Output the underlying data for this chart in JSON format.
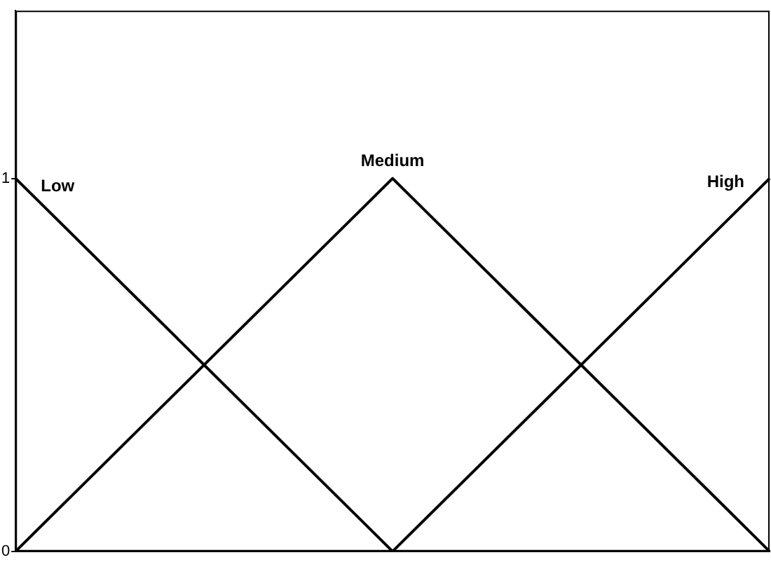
{
  "chart_data": {
    "type": "line",
    "categories": [
      null,
      null,
      null
    ],
    "series": [
      {
        "name": "Low",
        "color": "#000000",
        "values": [
          1,
          0,
          null
        ]
      },
      {
        "name": "Medium",
        "color": "#000000",
        "values": [
          0,
          1,
          0
        ]
      },
      {
        "name": "High",
        "color": "#000000",
        "values": [
          null,
          0,
          1
        ]
      }
    ],
    "ylim": [
      0,
      1.45
    ],
    "yticks": [
      0,
      1
    ],
    "tick_labels": "y",
    "grid": false,
    "legend": false,
    "marker": "none",
    "line_style": "solid"
  }
}
